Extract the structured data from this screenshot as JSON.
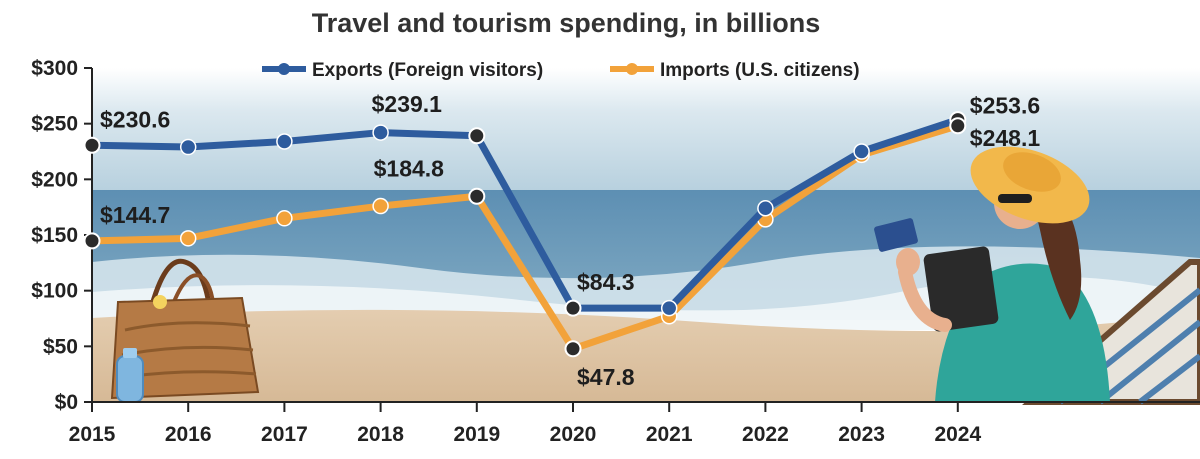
{
  "chart_data": {
    "type": "line",
    "title": "Travel and tourism spending, in billions",
    "xlabel": "",
    "ylabel": "",
    "categories": [
      "2015",
      "2016",
      "2017",
      "2018",
      "2019",
      "2020",
      "2021",
      "2022",
      "2023",
      "2024"
    ],
    "ylim": [
      0,
      300
    ],
    "y_ticks": [
      0,
      50,
      100,
      150,
      200,
      250,
      300
    ],
    "y_tick_labels": [
      "$0",
      "$50",
      "$100",
      "$150",
      "$200",
      "$250",
      "$300"
    ],
    "legend_position": "top",
    "series": [
      {
        "name": "Exports (Foreign visitors)",
        "color": "#2e5c9e",
        "values": [
          230.6,
          229,
          234,
          242,
          239.1,
          84.3,
          84.3,
          174,
          225,
          253.6
        ]
      },
      {
        "name": "Imports (U.S. citizens)",
        "color": "#f2a23a",
        "values": [
          144.7,
          147,
          165,
          176,
          184.8,
          47.8,
          77,
          164,
          222,
          248.1
        ]
      }
    ],
    "annotations": [
      {
        "series": 0,
        "index": 0,
        "text": "$230.6"
      },
      {
        "series": 0,
        "index": 4,
        "text": "$239.1"
      },
      {
        "series": 0,
        "index": 5,
        "text": "$84.3"
      },
      {
        "series": 0,
        "index": 9,
        "text": "$253.6"
      },
      {
        "series": 1,
        "index": 0,
        "text": "$144.7"
      },
      {
        "series": 1,
        "index": 4,
        "text": "$184.8"
      },
      {
        "series": 1,
        "index": 5,
        "text": "$47.8"
      },
      {
        "series": 1,
        "index": 9,
        "text": "$248.1"
      }
    ],
    "annotation_point_color": "#2b2b2b"
  },
  "background": {
    "sky": "#c6dbe6",
    "sea": "#4f84aa",
    "surf": "#e9f1f4",
    "sand": "#dcc2a2"
  }
}
